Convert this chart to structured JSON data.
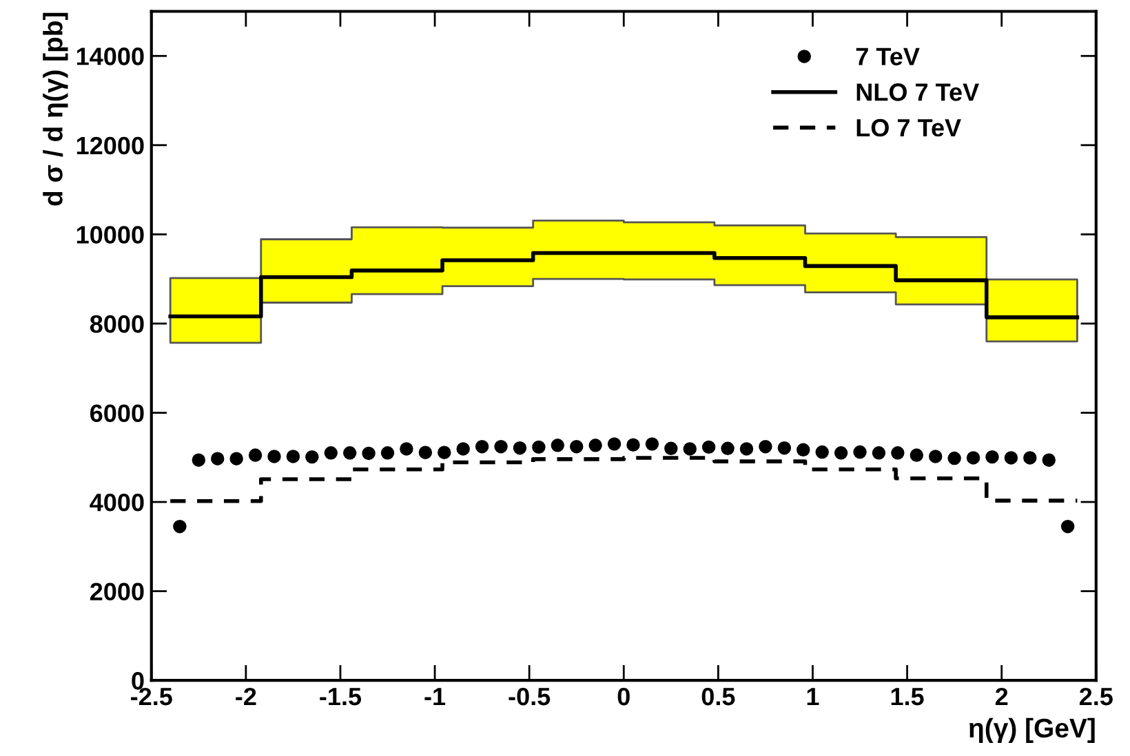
{
  "chart_data": {
    "type": "scatter",
    "xlabel": "η(γ) [GeV]",
    "ylabel": "d σ / d η(γ) [pb]",
    "xlim": [
      -2.5,
      2.5
    ],
    "ylim": [
      0,
      15000
    ],
    "xticks": [
      -2.5,
      -2,
      -1.5,
      -1,
      -0.5,
      0,
      0.5,
      1,
      1.5,
      2,
      2.5
    ],
    "yticks": [
      0,
      2000,
      4000,
      6000,
      8000,
      10000,
      12000,
      14000
    ],
    "grid": false,
    "legend": "top right",
    "series": [
      {
        "name": "7 TeV",
        "marker": "circle",
        "color": "#000000",
        "x": [
          -2.35,
          -2.25,
          -2.15,
          -2.05,
          -1.95,
          -1.85,
          -1.75,
          -1.65,
          -1.55,
          -1.45,
          -1.35,
          -1.25,
          -1.15,
          -1.05,
          -0.95,
          -0.85,
          -0.75,
          -0.65,
          -0.55,
          -0.45,
          -0.35,
          -0.25,
          -0.15,
          -0.05,
          0.05,
          0.15,
          0.25,
          0.35,
          0.45,
          0.55,
          0.65,
          0.75,
          0.85,
          0.95,
          1.05,
          1.15,
          1.25,
          1.35,
          1.45,
          1.55,
          1.65,
          1.75,
          1.85,
          1.95,
          2.05,
          2.15,
          2.25,
          2.35
        ],
        "values": [
          3450,
          4940,
          4970,
          4970,
          5050,
          5020,
          5020,
          5010,
          5100,
          5100,
          5090,
          5100,
          5190,
          5110,
          5110,
          5190,
          5240,
          5240,
          5210,
          5230,
          5270,
          5240,
          5270,
          5300,
          5280,
          5300,
          5200,
          5190,
          5230,
          5200,
          5190,
          5240,
          5210,
          5170,
          5120,
          5100,
          5120,
          5100,
          5100,
          5050,
          5020,
          4980,
          4990,
          5010,
          4990,
          4990,
          4940,
          3450
        ]
      },
      {
        "name": "NLO 7 TeV",
        "type": "step",
        "line_style": "solid",
        "color": "#000000",
        "x": [
          -2.4,
          -1.92,
          -1.44,
          -0.96,
          -0.48,
          0,
          0.48,
          0.96,
          1.44,
          1.92,
          2.4
        ],
        "values": [
          8160,
          9040,
          9190,
          9420,
          9580,
          9580,
          9470,
          9290,
          8970,
          8140,
          8140
        ],
        "lower": [
          7570,
          8470,
          8660,
          8840,
          9000,
          8990,
          8860,
          8700,
          8430,
          7600,
          7600
        ],
        "upper": [
          9020,
          9890,
          10160,
          10150,
          10310,
          10270,
          10200,
          10020,
          9940,
          8990,
          8990
        ]
      },
      {
        "name": "LO 7 TeV",
        "type": "step",
        "line_style": "dashed",
        "color": "#000000",
        "x": [
          -2.4,
          -1.92,
          -1.44,
          -0.96,
          -0.48,
          0,
          0.48,
          0.96,
          1.44,
          1.92,
          2.4
        ],
        "values": [
          4020,
          4510,
          4730,
          4890,
          4960,
          4990,
          4910,
          4730,
          4530,
          4030,
          4030
        ]
      }
    ]
  }
}
